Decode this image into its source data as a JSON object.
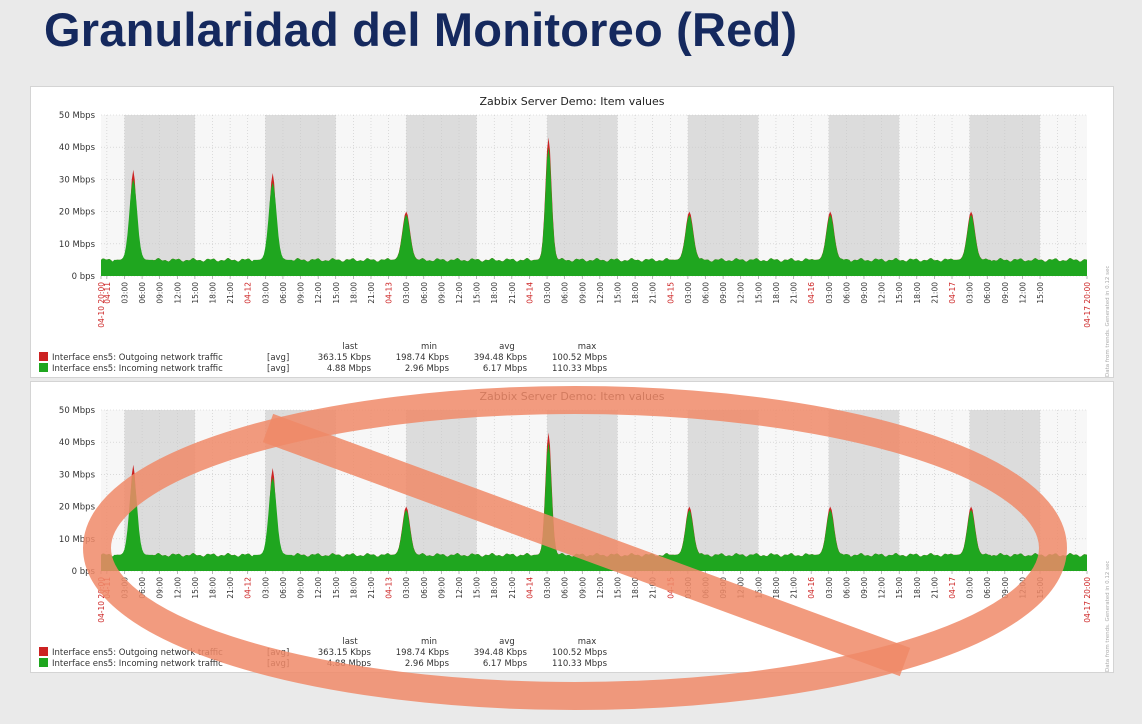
{
  "slide": {
    "title": "Granularidad del Monitoreo (Red)"
  },
  "colors": {
    "outgoing": "#cc2222",
    "incoming": "#1fa61f",
    "night_band": "#dcdcdc",
    "red_label": "#cc2222",
    "overlay": "#f08a68"
  },
  "overlay_icon": "prohibition-sign",
  "side_note": "Data from trends. Generated in 0.12 sec",
  "chart_data": [
    {
      "type": "area",
      "title": "Zabbix Server Demo: Item values",
      "y_ticks": [
        "0 bps",
        "10 Mbps",
        "20 Mbps",
        "30 Mbps",
        "40 Mbps",
        "50 Mbps"
      ],
      "ylim": [
        0,
        50
      ],
      "y_unit": "Mbps",
      "x_range": [
        "04-10 20:00",
        "04-17 20:00"
      ],
      "x_ticks": [
        "04-10 20:00",
        "04-11",
        "03:00",
        "06:00",
        "09:00",
        "12:00",
        "15:00",
        "18:00",
        "21:00",
        "04-12",
        "03:00",
        "06:00",
        "09:00",
        "12:00",
        "15:00",
        "18:00",
        "21:00",
        "04-13",
        "03:00",
        "06:00",
        "09:00",
        "12:00",
        "15:00",
        "18:00",
        "21:00",
        "04-14",
        "03:00",
        "06:00",
        "09:00",
        "12:00",
        "15:00",
        "18:00",
        "21:00",
        "04-15",
        "03:00",
        "06:00",
        "09:00",
        "12:00",
        "15:00",
        "18:00",
        "21:00",
        "04-16",
        "03:00",
        "06:00",
        "09:00",
        "12:00",
        "15:00",
        "18:00",
        "21:00",
        "04-17",
        "03:00",
        "06:00",
        "09:00",
        "12:00",
        "15:00",
        "04-17 20:00"
      ],
      "red_ticks": [
        "04-10 20:00",
        "04-11",
        "04-12",
        "04-13",
        "04-14",
        "04-15",
        "04-16",
        "04-17",
        "04-17 20:00"
      ],
      "baseline_mbps": 5,
      "spikes": [
        {
          "at": "04-11 01:30",
          "outgoing_peak": 33,
          "incoming_peak": 30
        },
        {
          "at": "04-12 01:15",
          "outgoing_peak": 32,
          "incoming_peak": 29
        },
        {
          "at": "04-13 00:00",
          "outgoing_peak": 20,
          "incoming_peak": 19
        },
        {
          "at": "04-14 00:15",
          "outgoing_peak": 43,
          "incoming_peak": 40
        },
        {
          "at": "04-15 00:15",
          "outgoing_peak": 20,
          "incoming_peak": 19
        },
        {
          "at": "04-16 00:15",
          "outgoing_peak": 20,
          "incoming_peak": 19
        },
        {
          "at": "04-17 00:15",
          "outgoing_peak": 20,
          "incoming_peak": 19
        }
      ],
      "legend": {
        "headers": [
          "last",
          "min",
          "avg",
          "max"
        ],
        "rows": [
          {
            "name": "Interface ens5: Outgoing network traffic",
            "func": "[avg]",
            "last": "363.15 Kbps",
            "min": "198.74 Kbps",
            "avg": "394.48 Kbps",
            "max": "100.52 Mbps"
          },
          {
            "name": "Interface ens5: Incoming network traffic",
            "func": "[avg]",
            "last": "4.88 Mbps",
            "min": "2.96 Mbps",
            "avg": "6.17 Mbps",
            "max": "110.33 Mbps"
          }
        ]
      }
    },
    {
      "type": "area",
      "title": "Zabbix Server Demo: Item values",
      "y_ticks": [
        "0 bps",
        "10 Mbps",
        "20 Mbps",
        "30 Mbps",
        "40 Mbps",
        "50 Mbps"
      ],
      "ylim": [
        0,
        50
      ],
      "y_unit": "Mbps",
      "x_range": [
        "04-10 20:00",
        "04-17 20:00"
      ],
      "x_ticks": [
        "04-10 20:00",
        "04-11",
        "03:00",
        "06:00",
        "09:00",
        "12:00",
        "15:00",
        "18:00",
        "21:00",
        "04-12",
        "03:00",
        "06:00",
        "09:00",
        "12:00",
        "15:00",
        "18:00",
        "21:00",
        "04-13",
        "03:00",
        "06:00",
        "09:00",
        "12:00",
        "15:00",
        "18:00",
        "21:00",
        "04-14",
        "03:00",
        "06:00",
        "09:00",
        "12:00",
        "15:00",
        "18:00",
        "21:00",
        "04-15",
        "03:00",
        "06:00",
        "09:00",
        "12:00",
        "15:00",
        "18:00",
        "21:00",
        "04-16",
        "03:00",
        "06:00",
        "09:00",
        "12:00",
        "15:00",
        "18:00",
        "21:00",
        "04-17",
        "03:00",
        "06:00",
        "09:00",
        "12:00",
        "15:00",
        "04-17 20:00"
      ],
      "red_ticks": [
        "04-10 20:00",
        "04-11",
        "04-12",
        "04-13",
        "04-14",
        "04-15",
        "04-16",
        "04-17",
        "04-17 20:00"
      ],
      "baseline_mbps": 5,
      "spikes": [
        {
          "at": "04-11 01:30",
          "outgoing_peak": 33,
          "incoming_peak": 30
        },
        {
          "at": "04-12 01:15",
          "outgoing_peak": 32,
          "incoming_peak": 29
        },
        {
          "at": "04-13 00:00",
          "outgoing_peak": 20,
          "incoming_peak": 19
        },
        {
          "at": "04-14 00:15",
          "outgoing_peak": 43,
          "incoming_peak": 40
        },
        {
          "at": "04-15 00:15",
          "outgoing_peak": 20,
          "incoming_peak": 19
        },
        {
          "at": "04-16 00:15",
          "outgoing_peak": 20,
          "incoming_peak": 19
        },
        {
          "at": "04-17 00:15",
          "outgoing_peak": 20,
          "incoming_peak": 19
        }
      ],
      "legend": {
        "headers": [
          "last",
          "min",
          "avg",
          "max"
        ],
        "rows": [
          {
            "name": "Interface ens5: Outgoing network traffic",
            "func": "[avg]",
            "last": "363.15 Kbps",
            "min": "198.74 Kbps",
            "avg": "394.48 Kbps",
            "max": "100.52 Mbps"
          },
          {
            "name": "Interface ens5: Incoming network traffic",
            "func": "[avg]",
            "last": "4.88 Mbps",
            "min": "2.96 Mbps",
            "avg": "6.17 Mbps",
            "max": "110.33 Mbps"
          }
        ]
      }
    }
  ]
}
